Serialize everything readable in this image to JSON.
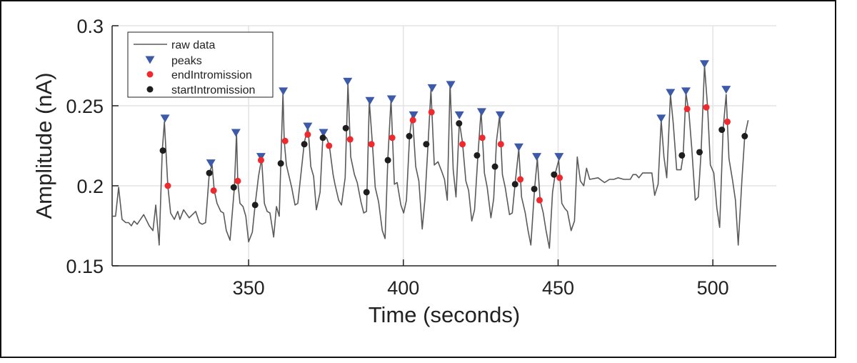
{
  "chart_data": {
    "type": "line",
    "title": "",
    "xlabel": "Time (seconds)",
    "ylabel": "Amplitude (nA)",
    "xlim": [
      305.9,
      520.5
    ],
    "ylim": [
      0.15,
      0.3
    ],
    "xticks": [
      350,
      400,
      450,
      500
    ],
    "yticks": [
      0.15,
      0.2,
      0.25,
      0.3
    ],
    "xtick_labels": [
      "350",
      "400",
      "450",
      "500"
    ],
    "ytick_labels": [
      "0.15",
      "0.2",
      "0.25",
      "0.3"
    ],
    "grid": true,
    "legend_placement": "top-left",
    "colors": {
      "raw": "#5a5a5a",
      "peaks": "#3d5aa8",
      "end": "#ee2a2e",
      "start": "#1e1e1e",
      "grid": "#e3e3e3"
    },
    "series": [
      {
        "name": "raw data",
        "marker": "line",
        "x": [
          305.9,
          307.0,
          308.0,
          309.1,
          310.3,
          311.2,
          312.1,
          313.0,
          314.0,
          316.1,
          317.9,
          319.1,
          320.0,
          321.1,
          322.1,
          322.8,
          323.9,
          324.8,
          326.0,
          327.1,
          327.8,
          329.0,
          330.8,
          332.9,
          334.1,
          335.0,
          336.1,
          337.3,
          338.2,
          338.9,
          339.8,
          341.0,
          341.9,
          342.8,
          344.0,
          345.4,
          346.1,
          346.5,
          347.2,
          348.2,
          349.1,
          350.0,
          351.2,
          352.1,
          353.2,
          354.2,
          355.1,
          356.0,
          356.9,
          358.1,
          359.0,
          359.9,
          360.4,
          361.1,
          361.5,
          362.2,
          363.9,
          365.0,
          365.9,
          368.0,
          369.2,
          370.1,
          371.0,
          371.9,
          373.1,
          374.0,
          375.2,
          376.1,
          377.3,
          377.9,
          379.1,
          380.0,
          381.2,
          382.1,
          383.0,
          384.2,
          385.1,
          386.3,
          387.2,
          388.1,
          389.0,
          390.0,
          390.9,
          392.0,
          393.2,
          394.1,
          395.0,
          396.0,
          397.1,
          398.0,
          399.2,
          400.1,
          401.0,
          402.0,
          402.9,
          404.0,
          405.0,
          406.1,
          407.0,
          408.0,
          408.9,
          410.0,
          411.2,
          412.4,
          413.3,
          414.2,
          415.1,
          416.1,
          417.0,
          418.1,
          419.1,
          420.2,
          421.1,
          422.1,
          423.0,
          424.1,
          425.1,
          426.2,
          427.1,
          428.3,
          429.2,
          430.1,
          431.1,
          432.0,
          432.9,
          434.3,
          435.2,
          436.1,
          437.3,
          438.2,
          439.4,
          440.3,
          441.2,
          442.4,
          443.3,
          444.2,
          445.2,
          446.1,
          447.2,
          448.2,
          449.1,
          450.2,
          451.2,
          452.1,
          453.0,
          454.2,
          455.3,
          456.2,
          457.2,
          458.3,
          459.2,
          460.2,
          462.9,
          465.0,
          466.6,
          468.0,
          469.4,
          471.2,
          473.3,
          474.2,
          475.2,
          476.1,
          477.3,
          479.1,
          480.3,
          481.2,
          482.3,
          483.3,
          484.2,
          485.1,
          486.3,
          487.2,
          488.3,
          489.7,
          490.4,
          491.3,
          492.3,
          493.2,
          494.3,
          495.3,
          496.2,
          497.3,
          498.3,
          499.2,
          500.3,
          501.3,
          502.2,
          503.3,
          504.3,
          505.2,
          506.4,
          507.3,
          508.2,
          509.4,
          510.3,
          511.4
        ],
        "y": [
          0.181,
          0.181,
          0.199,
          0.179,
          0.177,
          0.177,
          0.175,
          0.178,
          0.176,
          0.182,
          0.175,
          0.172,
          0.188,
          0.163,
          0.222,
          0.24,
          0.2,
          0.183,
          0.179,
          0.184,
          0.179,
          0.185,
          0.18,
          0.184,
          0.177,
          0.176,
          0.177,
          0.208,
          0.213,
          0.197,
          0.189,
          0.184,
          0.183,
          0.172,
          0.166,
          0.199,
          0.233,
          0.203,
          0.189,
          0.187,
          0.181,
          0.165,
          0.171,
          0.188,
          0.206,
          0.217,
          0.189,
          0.184,
          0.183,
          0.168,
          0.187,
          0.181,
          0.214,
          0.258,
          0.228,
          0.213,
          0.199,
          0.188,
          0.189,
          0.227,
          0.237,
          0.212,
          0.206,
          0.185,
          0.196,
          0.231,
          0.23,
          0.225,
          0.207,
          0.201,
          0.191,
          0.188,
          0.205,
          0.264,
          0.218,
          0.207,
          0.202,
          0.19,
          0.183,
          0.184,
          0.253,
          0.226,
          0.199,
          0.19,
          0.172,
          0.167,
          0.217,
          0.254,
          0.201,
          0.202,
          0.188,
          0.183,
          0.191,
          0.231,
          0.245,
          0.212,
          0.203,
          0.173,
          0.192,
          0.227,
          0.26,
          0.213,
          0.215,
          0.209,
          0.204,
          0.191,
          0.264,
          0.21,
          0.193,
          0.24,
          0.227,
          0.203,
          0.197,
          0.178,
          0.185,
          0.219,
          0.247,
          0.208,
          0.199,
          0.18,
          0.192,
          0.228,
          0.244,
          0.207,
          0.199,
          0.182,
          0.183,
          0.201,
          0.223,
          0.193,
          0.183,
          0.172,
          0.163,
          0.198,
          0.217,
          0.191,
          0.183,
          0.172,
          0.161,
          0.196,
          0.208,
          0.216,
          0.189,
          0.186,
          0.184,
          0.172,
          0.178,
          0.218,
          0.203,
          0.2,
          0.211,
          0.204,
          0.205,
          0.202,
          0.204,
          0.204,
          0.205,
          0.204,
          0.204,
          0.207,
          0.207,
          0.205,
          0.208,
          0.208,
          0.208,
          0.194,
          0.201,
          0.241,
          0.218,
          0.205,
          0.257,
          0.239,
          0.21,
          0.21,
          0.219,
          0.258,
          0.245,
          0.223,
          0.191,
          0.193,
          0.221,
          0.275,
          0.249,
          0.213,
          0.208,
          0.186,
          0.174,
          0.235,
          0.257,
          0.217,
          0.203,
          0.191,
          0.163,
          0.204,
          0.231,
          0.241
        ]
      },
      {
        "name": "peaks",
        "marker": "triangle-down",
        "x": [
          323.0,
          337.8,
          345.9,
          354.0,
          361.2,
          369.1,
          374.2,
          382.0,
          389.2,
          396.2,
          403.3,
          409.3,
          415.3,
          418.1,
          425.3,
          431.3,
          437.3,
          443.1,
          450.3,
          483.3,
          486.3,
          491.3,
          497.3,
          504.3
        ],
        "y": [
          0.242,
          0.214,
          0.233,
          0.218,
          0.259,
          0.237,
          0.233,
          0.265,
          0.253,
          0.254,
          0.244,
          0.261,
          0.263,
          0.244,
          0.246,
          0.244,
          0.224,
          0.218,
          0.218,
          0.242,
          0.258,
          0.259,
          0.276,
          0.26
        ]
      },
      {
        "name": "endIntromission",
        "marker": "circle",
        "x": [
          323.9,
          338.7,
          346.5,
          354.0,
          361.8,
          369.1,
          376.0,
          382.8,
          389.7,
          396.4,
          403.1,
          409.1,
          419.1,
          425.5,
          431.5,
          437.8,
          444.0,
          450.5,
          491.7,
          497.9,
          504.7
        ],
        "y": [
          0.2,
          0.197,
          0.203,
          0.216,
          0.228,
          0.232,
          0.225,
          0.229,
          0.226,
          0.23,
          0.241,
          0.246,
          0.226,
          0.23,
          0.226,
          0.204,
          0.191,
          0.205,
          0.248,
          0.249,
          0.24
        ]
      },
      {
        "name": "startIntromission",
        "marker": "circle",
        "x": [
          322.3,
          337.3,
          345.2,
          352.1,
          360.4,
          368.0,
          374.0,
          381.4,
          388.1,
          395.0,
          401.9,
          407.4,
          418.0,
          423.8,
          429.6,
          436.1,
          442.3,
          448.7,
          490.0,
          495.7,
          502.9,
          510.3
        ],
        "y": [
          0.222,
          0.208,
          0.199,
          0.188,
          0.214,
          0.226,
          0.23,
          0.236,
          0.196,
          0.216,
          0.231,
          0.226,
          0.239,
          0.219,
          0.212,
          0.201,
          0.198,
          0.207,
          0.219,
          0.221,
          0.235,
          0.231
        ]
      }
    ]
  }
}
